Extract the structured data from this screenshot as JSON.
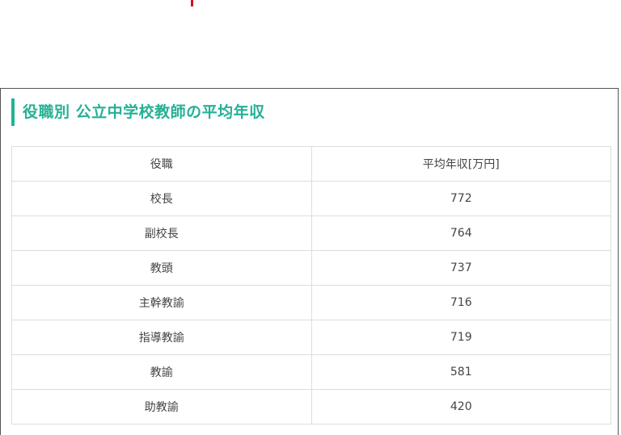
{
  "accent_color": "#22b394",
  "title": "役職別 公立中学校教師の平均年収",
  "table": {
    "headers": [
      "役職",
      "平均年収[万円]"
    ],
    "rows": [
      [
        "校長",
        "772"
      ],
      [
        "副校長",
        "764"
      ],
      [
        "教頭",
        "737"
      ],
      [
        "主幹教諭",
        "716"
      ],
      [
        "指導教諭",
        "719"
      ],
      [
        "教諭",
        "581"
      ],
      [
        "助教諭",
        "420"
      ]
    ]
  }
}
